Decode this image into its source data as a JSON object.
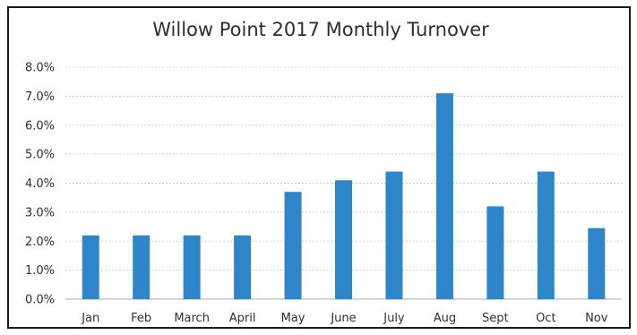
{
  "chart_data": {
    "type": "bar",
    "title": "Willow Point 2017 Monthly Turnover",
    "xlabel": "",
    "ylabel": "",
    "categories": [
      "Jan",
      "Feb",
      "March",
      "April",
      "May",
      "June",
      "July",
      "Aug",
      "Sept",
      "Oct",
      "Nov"
    ],
    "values": [
      2.2,
      2.2,
      2.2,
      2.2,
      3.7,
      4.1,
      4.4,
      7.1,
      3.2,
      4.4,
      2.45
    ],
    "ylim": [
      0,
      8
    ],
    "yticks": [
      "0.0%",
      "1.0%",
      "2.0%",
      "3.0%",
      "4.0%",
      "5.0%",
      "6.0%",
      "7.0%",
      "8.0%"
    ],
    "grid": true,
    "legend": "none",
    "colors": {
      "bar": "#2e86c9",
      "grid": "#cfcfcf",
      "axis": "#bdbdbd",
      "text": "#2f2f2f"
    }
  }
}
